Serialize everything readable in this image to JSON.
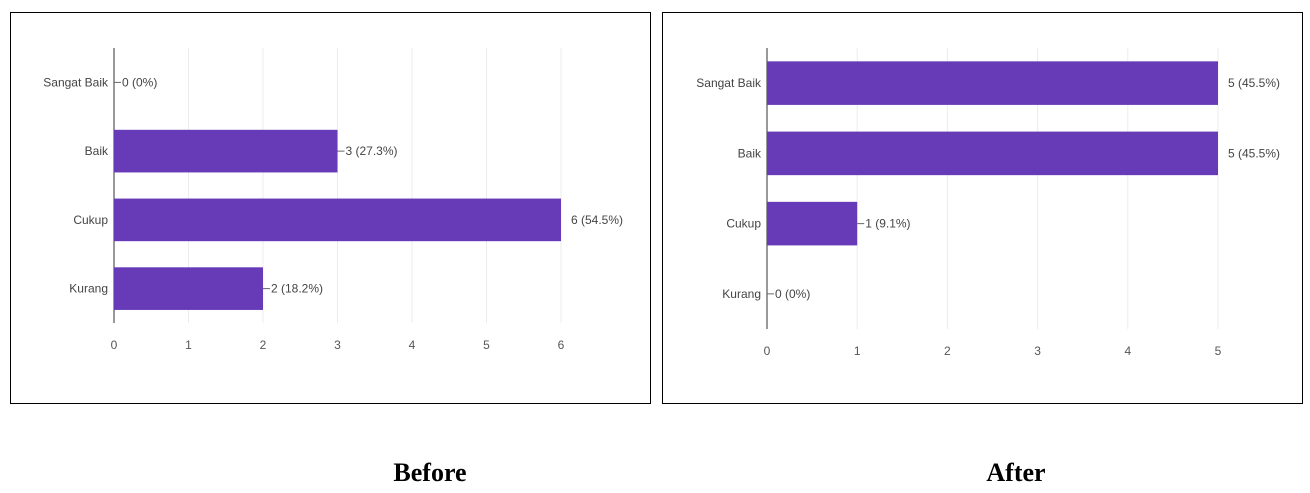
{
  "chart_data": [
    {
      "type": "bar",
      "orientation": "horizontal",
      "categories": [
        "Sangat Baik",
        "Baik",
        "Cukup",
        "Kurang"
      ],
      "values": [
        0,
        3,
        6,
        2
      ],
      "data_labels": [
        "0 (0%)",
        "3 (27.3%)",
        "6 (54.5%)",
        "2 (18.2%)"
      ],
      "xlim": [
        0,
        6
      ],
      "x_ticks": [
        "0",
        "1",
        "2",
        "3",
        "4",
        "5",
        "6"
      ],
      "grid": true,
      "bar_color": "#673ab7",
      "caption": "Before"
    },
    {
      "type": "bar",
      "orientation": "horizontal",
      "categories": [
        "Sangat Baik",
        "Baik",
        "Cukup",
        "Kurang"
      ],
      "values": [
        5,
        5,
        1,
        0
      ],
      "data_labels": [
        "5 (45.5%)",
        "5 (45.5%)",
        "1 (9.1%)",
        "0 (0%)"
      ],
      "xlim": [
        0,
        5
      ],
      "x_ticks": [
        "0",
        "1",
        "2",
        "3",
        "4",
        "5"
      ],
      "grid": true,
      "bar_color": "#673ab7",
      "caption": "After"
    }
  ]
}
